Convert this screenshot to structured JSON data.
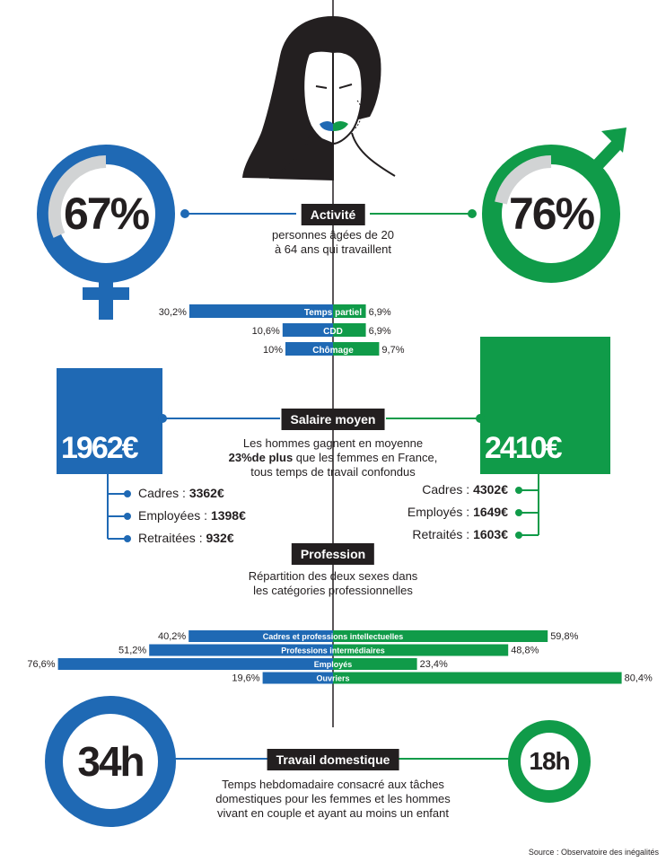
{
  "colors": {
    "women": "#1f69b4",
    "men": "#109b49",
    "dark": "#231f20",
    "grey": "#d1d3d4"
  },
  "activite": {
    "tag": "Activité",
    "caption_line1": "personnes âgées de 20",
    "caption_line2": "à 64 ans qui travaillent",
    "women_pct": "67%",
    "men_pct": "76%"
  },
  "salaire": {
    "tag": "Salaire moyen",
    "caption_line1": "Les hommes gagnent en moyenne",
    "caption_bold": "23%de plus",
    "caption_line2_rest": " que les femmes en France,",
    "caption_line3": "tous temps de travail confondus",
    "women_value": "1962€",
    "men_value": "2410€",
    "women_items": [
      {
        "label": "Cadres : ",
        "value": "3362€"
      },
      {
        "label": "Employées : ",
        "value": "1398€"
      },
      {
        "label": "Retraitées : ",
        "value": "932€"
      }
    ],
    "men_items": [
      {
        "label": "Cadres : ",
        "value": "4302€"
      },
      {
        "label": "Employés : ",
        "value": "1649€"
      },
      {
        "label": "Retraités : ",
        "value": "1603€"
      }
    ]
  },
  "profession": {
    "tag": "Profession",
    "caption_line1": "Répartition des deux sexes dans",
    "caption_line2": "les catégories professionnelles"
  },
  "domestique": {
    "tag": "Travail domestique",
    "caption_line1": "Temps hebdomadaire consacré aux tâches",
    "caption_line2": "domestiques pour les femmes et les hommes",
    "caption_line3": "vivant en couple et ayant au moins un enfant",
    "women_hours": "34h",
    "men_hours": "18h"
  },
  "source": "Source : Observatoire des inégalités",
  "chart_data": [
    {
      "type": "bar",
      "title": "",
      "categories": [
        "Temps partiel",
        "CDD",
        "Chômage"
      ],
      "series": [
        {
          "values": [
            30.2,
            10.6,
            10
          ],
          "labels": [
            "30,2%",
            "10,6%",
            "10%"
          ]
        },
        {
          "values": [
            6.9,
            6.9,
            9.7
          ],
          "labels": [
            "6,9%",
            "6,9%",
            "9,7%"
          ]
        }
      ]
    },
    {
      "type": "bar",
      "title": "",
      "categories": [
        "Cadres et professions intellectuelles",
        "Professions intermédiaires",
        "Employés",
        "Ouvriers"
      ],
      "series": [
        {
          "values": [
            40.2,
            51.2,
            76.6,
            19.6
          ],
          "labels": [
            "40,2%",
            "51,2%",
            "76,6%",
            "19,6%"
          ]
        },
        {
          "values": [
            59.8,
            48.8,
            23.4,
            80.4
          ],
          "labels": [
            "59,8%",
            "48,8%",
            "23,4%",
            "80,4%"
          ]
        }
      ]
    }
  ]
}
